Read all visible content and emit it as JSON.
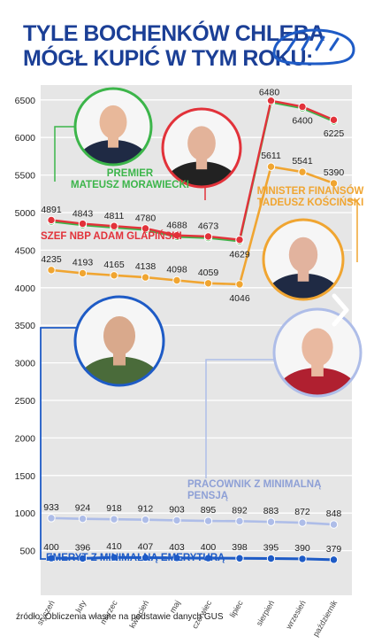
{
  "title_lines": [
    "TYLE BOCHENKÓW CHLEBA",
    "MÓGŁ KUPIĆ W TYM ROKU:"
  ],
  "source": "źródło: Obliczenia własne na podstawie danych GUS",
  "colors": {
    "title": "#1b3f96",
    "background": "#e6e6e6",
    "morawiecki": "#3cb54a",
    "glapinski": "#e2323a",
    "koscinski": "#f0a531",
    "minimal_wage": "#aebde8",
    "minimal_pension": "#1e5bc6"
  },
  "person_labels": {
    "morawiecki": [
      "PREMIER",
      "MATEUSZ MORAWIECKI"
    ],
    "glapinski": [
      "SZEF NBP ADAM GLAPIŃSKI"
    ],
    "koscinski": [
      "MINISTER FINANSÓW",
      "TADEUSZ KOŚCIŃSKI"
    ],
    "minimal_wage": [
      "PRACOWNIK Z MINIMALNĄ PENSJĄ"
    ],
    "minimal_pension": [
      "EMERYT Z MINIMALNĄ EMERYTURĄ"
    ]
  },
  "icons": [
    "bread-icon",
    "chevron-right-icon",
    "portrait-morawiecki-icon",
    "portrait-glapinski-icon",
    "portrait-koscinski-icon",
    "portrait-pensioner-icon",
    "portrait-worker-icon"
  ],
  "chart_data": {
    "type": "line",
    "categories": [
      "styczeń",
      "luty",
      "marzec",
      "kwiecień",
      "maj",
      "czerwiec",
      "lipiec",
      "sierpień",
      "wrzesień",
      "październik"
    ],
    "ylim": [
      0,
      6500
    ],
    "yticks": [
      500,
      1000,
      1500,
      2000,
      2500,
      3000,
      3500,
      4000,
      4500,
      5000,
      5500,
      6000,
      6500
    ],
    "grid": "horizontal",
    "series": [
      {
        "name": "PREMIER MATEUSZ MORAWIECKI",
        "key": "morawiecki",
        "values": [
          4891,
          4843,
          4811,
          4780,
          4688,
          4673,
          4629,
          6480,
          6400,
          6225
        ]
      },
      {
        "name": "SZEF NBP ADAM GLAPIŃSKI",
        "key": "glapinski",
        "values": [
          4891,
          4843,
          4811,
          4780,
          4688,
          4673,
          4629,
          6480,
          6400,
          6225
        ]
      },
      {
        "name": "MINISTER FINANSÓW TADEUSZ KOŚCIŃSKI",
        "key": "koscinski",
        "values": [
          4235,
          4193,
          4165,
          4138,
          4098,
          4059,
          4046,
          5611,
          5541,
          5390
        ]
      },
      {
        "name": "PRACOWNIK Z MINIMALNĄ PENSJĄ",
        "key": "minimal_wage",
        "values": [
          933,
          924,
          918,
          912,
          903,
          895,
          892,
          883,
          872,
          848
        ]
      },
      {
        "name": "EMERYT Z MINIMALNĄ EMERYTURĄ",
        "key": "minimal_pension",
        "values": [
          400,
          396,
          410,
          407,
          403,
          400,
          398,
          395,
          390,
          379
        ]
      }
    ]
  }
}
